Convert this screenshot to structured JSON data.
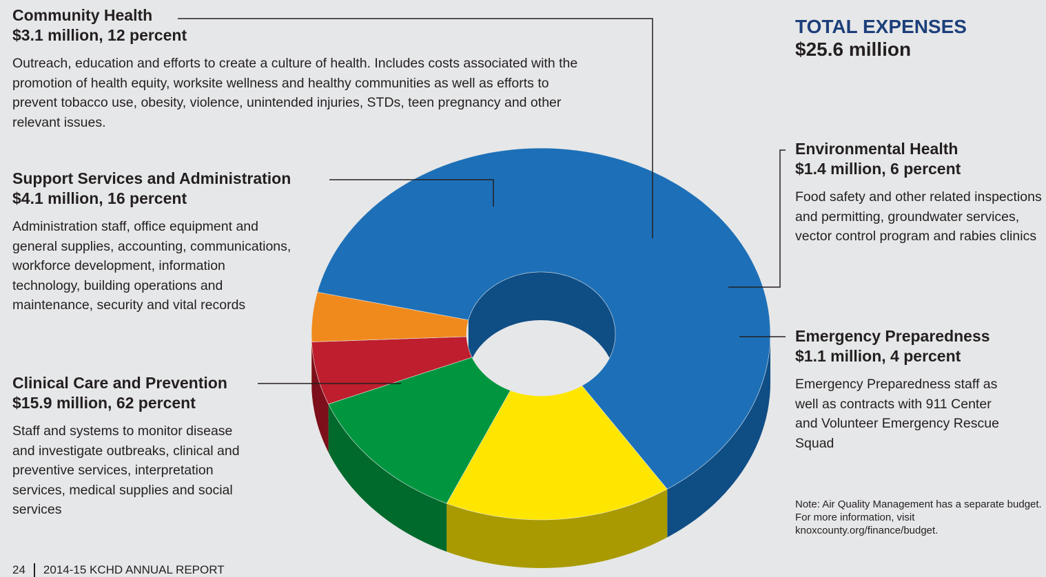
{
  "total": {
    "label": "TOTAL EXPENSES",
    "value": "$25.6 million"
  },
  "categories": {
    "community_health": {
      "title": "Community Health",
      "amount": "$3.1 million, 12 percent",
      "description": "Outreach, education and efforts to create a culture of health. Includes costs associated with the promotion of health equity, worksite wellness and healthy communities as well as efforts to prevent tobacco use, obesity, violence, unintended injuries, STDs, teen pregnancy and other relevant issues."
    },
    "support_services": {
      "title": "Support Services and Administration",
      "amount": "$4.1 million, 16 percent",
      "description": "Administration staff, office equipment and general supplies, accounting, communications, workforce development, information technology, building operations and maintenance, security and vital records"
    },
    "clinical_care": {
      "title": "Clinical Care and Prevention",
      "amount": "$15.9 million, 62 percent",
      "description": "Staff and systems to monitor disease and investigate outbreaks, clinical and preventive services, interpretation services, medical supplies and social services"
    },
    "environmental_health": {
      "title": "Environmental Health",
      "amount": "$1.4 million, 6 percent",
      "description": "Food safety and other related inspections and permitting, groundwater services, vector control program and rabies clinics"
    },
    "emergency_preparedness": {
      "title": "Emergency Preparedness",
      "amount": "$1.1 million, 4 percent",
      "description": "Emergency Preparedness staff as well as contracts with 911 Center and Volunteer Emergency Rescue Squad"
    }
  },
  "note": "Note: Air Quality Management has a separate budget. For more information, visit knoxcounty.org/finance/budget.",
  "footer": {
    "page": "24",
    "report": "2014-15 KCHD ANNUAL REPORT"
  },
  "chart_data": {
    "type": "pie",
    "style": "3d-donut",
    "categories": [
      "Clinical Care and Prevention",
      "Support Services and Administration",
      "Community Health",
      "Environmental Health",
      "Emergency Preparedness"
    ],
    "values": [
      15.9,
      4.1,
      3.1,
      1.4,
      1.1
    ],
    "percents": [
      62,
      16,
      12,
      6,
      4
    ],
    "unit": "$ million",
    "colors": [
      "#1d70b7",
      "#ffe600",
      "#00963f",
      "#be1e2d",
      "#f08a1d"
    ],
    "side_colors": [
      "#0f4d85",
      "#a89a00",
      "#006a2c",
      "#7d0f1a",
      "#a85e10"
    ]
  }
}
